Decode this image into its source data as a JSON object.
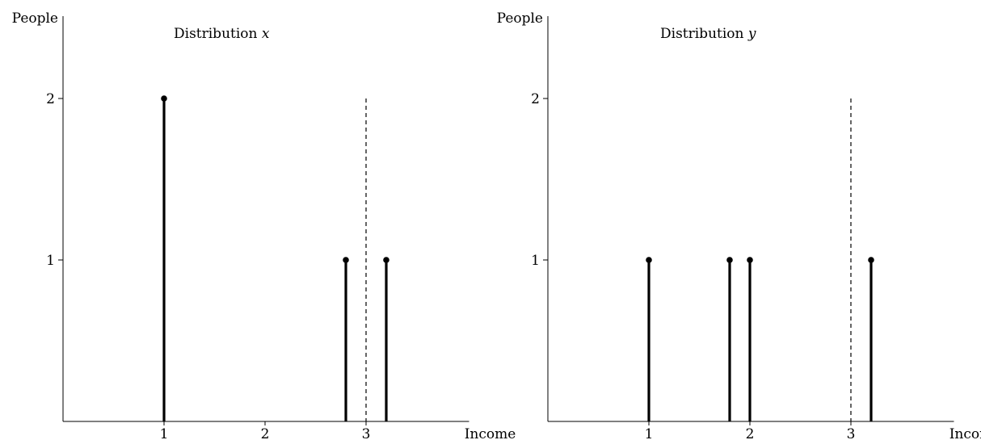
{
  "chart_data": [
    {
      "type": "stem",
      "title": "Distribution",
      "title_variable": "x",
      "xlabel": "Income",
      "ylabel": "People",
      "xlim": [
        0,
        3.7
      ],
      "ylim": [
        0,
        2.5
      ],
      "xticks": [
        1,
        2,
        3
      ],
      "yticks": [
        1,
        2
      ],
      "points": [
        {
          "x": 1.0,
          "y": 2
        },
        {
          "x": 2.8,
          "y": 1
        },
        {
          "x": 3.2,
          "y": 1
        }
      ],
      "reference_line": {
        "x": 3,
        "y_top": 2,
        "style": "dashed"
      },
      "grid": false,
      "legend": "none"
    },
    {
      "type": "stem",
      "title": "Distribution",
      "title_variable": "y",
      "xlabel": "Income",
      "ylabel": "People",
      "xlim": [
        0,
        3.7
      ],
      "ylim": [
        0,
        2.5
      ],
      "xticks": [
        1,
        2,
        3
      ],
      "yticks": [
        1,
        2
      ],
      "points": [
        {
          "x": 1.0,
          "y": 1
        },
        {
          "x": 1.8,
          "y": 1
        },
        {
          "x": 2.0,
          "y": 1
        },
        {
          "x": 3.2,
          "y": 1
        }
      ],
      "reference_line": {
        "x": 3,
        "y_top": 2,
        "style": "dashed"
      },
      "grid": false,
      "legend": "none"
    }
  ]
}
